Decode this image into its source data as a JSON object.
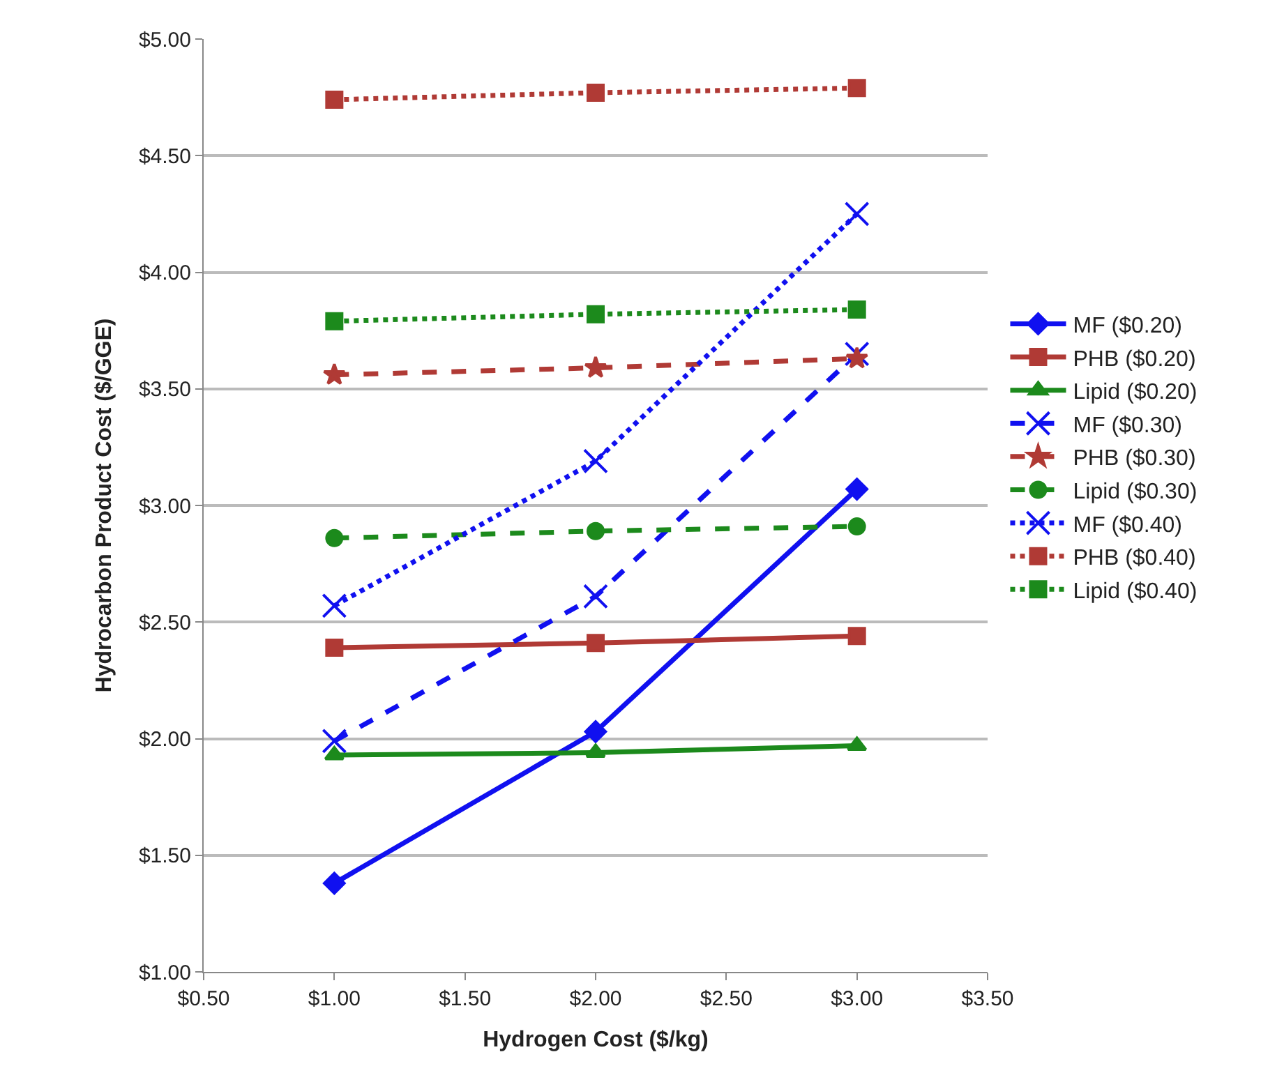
{
  "chart_data": {
    "type": "line",
    "xlabel": "Hydrogen Cost ($/kg)",
    "ylabel": "Hydrocarbon Product Cost ($/GGE)",
    "x": [
      1,
      2,
      3
    ],
    "xlim": [
      0.5,
      3.5
    ],
    "xticks": [
      {
        "value": 0.5,
        "label": "$0.50"
      },
      {
        "value": 1,
        "label": "$1.00"
      },
      {
        "value": 1.5,
        "label": "$1.50"
      },
      {
        "value": 2,
        "label": "$2.00"
      },
      {
        "value": 2.5,
        "label": "$2.50"
      },
      {
        "value": 3,
        "label": "$3.00"
      },
      {
        "value": 3.5,
        "label": "$3.50"
      }
    ],
    "ylim": [
      1,
      5
    ],
    "yticks": [
      {
        "value": 1,
        "label": "$1.00"
      },
      {
        "value": 1.5,
        "label": "$1.50"
      },
      {
        "value": 2,
        "label": "$2.00"
      },
      {
        "value": 2.5,
        "label": "$2.50"
      },
      {
        "value": 3,
        "label": "$3.00"
      },
      {
        "value": 3.5,
        "label": "$3.50"
      },
      {
        "value": 4,
        "label": "$4.00"
      },
      {
        "value": 4.5,
        "label": "$4.50"
      },
      {
        "value": 5,
        "label": "$5.00"
      }
    ],
    "grid": "y",
    "legend": "right",
    "series": [
      {
        "name": "MF ($0.20)",
        "color": "#1010f0",
        "values": [
          1.38,
          2.03,
          3.07
        ],
        "marker": "diamond",
        "line_style": "solid"
      },
      {
        "name": "PHB ($0.20)",
        "color": "#b03a35",
        "values": [
          2.39,
          2.41,
          2.44
        ],
        "marker": "square",
        "line_style": "solid"
      },
      {
        "name": "Lipid ($0.20)",
        "color": "#1c8a1c",
        "values": [
          1.93,
          1.94,
          1.97
        ],
        "marker": "triangle",
        "line_style": "solid"
      },
      {
        "name": "MF ($0.30)",
        "color": "#1010f0",
        "values": [
          1.99,
          2.61,
          3.65
        ],
        "marker": "cross",
        "line_style": "dashed"
      },
      {
        "name": "PHB ($0.30)",
        "color": "#b03a35",
        "values": [
          3.56,
          3.59,
          3.63
        ],
        "marker": "star",
        "line_style": "dashed"
      },
      {
        "name": "Lipid ($0.30)",
        "color": "#1c8a1c",
        "values": [
          2.86,
          2.89,
          2.91
        ],
        "marker": "circle",
        "line_style": "dashed"
      },
      {
        "name": "MF ($0.40)",
        "color": "#1010f0",
        "values": [
          2.57,
          3.19,
          4.25
        ],
        "marker": "cross",
        "line_style": "dotted"
      },
      {
        "name": "PHB ($0.40)",
        "color": "#b03a35",
        "values": [
          4.74,
          4.77,
          4.79
        ],
        "marker": "square",
        "line_style": "dotted"
      },
      {
        "name": "Lipid ($0.40)",
        "color": "#1c8a1c",
        "values": [
          3.79,
          3.82,
          3.84
        ],
        "marker": "square",
        "line_style": "dotted"
      }
    ]
  }
}
